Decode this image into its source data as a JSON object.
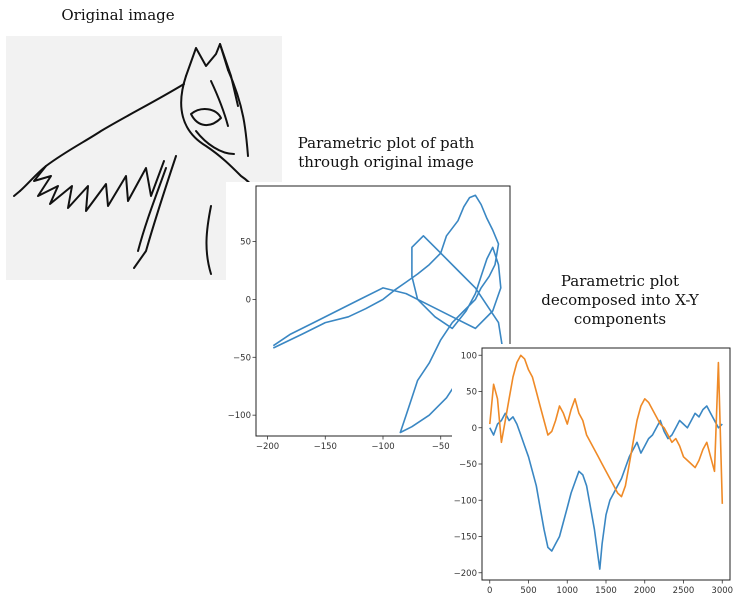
{
  "captions": {
    "original": "Original image",
    "parametric": "Parametric plot of path\nthrough original image",
    "decomposed": "Parametric plot\ndecomposed into X-Y\ncomponents"
  },
  "chart_data": [
    {
      "type": "line",
      "title": "",
      "xlabel": "",
      "ylabel": "",
      "xlim": [
        -210,
        10
      ],
      "ylim": [
        -118,
        98
      ],
      "xticks": [
        -200,
        -150,
        -100,
        -50,
        0
      ],
      "yticks": [
        50,
        0,
        -50,
        -100
      ],
      "x_tick_labels": [
        "−200",
        "−150",
        "−100",
        "−50",
        "0"
      ],
      "y_tick_labels": [
        "50",
        "0",
        "−50",
        "−100"
      ],
      "series": [
        {
          "color": "#3a87c3",
          "x": [
            -195,
            -170,
            -150,
            -130,
            -115,
            -100,
            -90,
            -80,
            -70,
            -60,
            -50,
            -45,
            -35,
            -30,
            -25,
            -20,
            -15,
            -10,
            -5,
            0,
            -3,
            -8,
            -15,
            -20,
            -30,
            -40,
            -50,
            -60,
            -70,
            -75,
            -80,
            -85,
            -75,
            -60,
            -45,
            -35,
            -25,
            -15,
            -5,
            2,
            4,
            0,
            -10,
            -20,
            -35,
            -50,
            -65,
            -75,
            -75,
            -70,
            -55,
            -40,
            -28,
            -20,
            -15,
            -10,
            -5,
            0,
            2,
            -5,
            -20,
            -40,
            -60,
            -80,
            -100,
            -120,
            -140,
            -160,
            -180,
            -195
          ],
          "y": [
            -42,
            -30,
            -20,
            -15,
            -8,
            0,
            8,
            15,
            22,
            30,
            40,
            55,
            68,
            80,
            88,
            90,
            82,
            70,
            60,
            48,
            30,
            20,
            10,
            0,
            -10,
            -20,
            -35,
            -55,
            -70,
            -85,
            -100,
            -115,
            -110,
            -100,
            -85,
            -70,
            -60,
            -50,
            -55,
            -65,
            -45,
            -20,
            -5,
            10,
            25,
            40,
            55,
            45,
            20,
            0,
            -15,
            -25,
            -10,
            5,
            20,
            35,
            45,
            30,
            10,
            -10,
            -25,
            -15,
            -5,
            5,
            10,
            0,
            -10,
            -20,
            -30,
            -40
          ]
        }
      ]
    },
    {
      "type": "line",
      "title": "",
      "xlabel": "",
      "ylabel": "",
      "xlim": [
        -100,
        3100
      ],
      "ylim": [
        -210,
        110
      ],
      "xticks": [
        0,
        500,
        1000,
        1500,
        2000,
        2500,
        3000
      ],
      "yticks": [
        100,
        50,
        0,
        -50,
        -100,
        -150,
        -200
      ],
      "x_tick_labels": [
        "0",
        "500",
        "1000",
        "1500",
        "2000",
        "2500",
        "3000"
      ],
      "y_tick_labels": [
        "100",
        "50",
        "0",
        "−50",
        "−100",
        "−150",
        "−200"
      ],
      "series": [
        {
          "color": "#3a87c3",
          "x": [
            0,
            50,
            100,
            150,
            200,
            250,
            300,
            350,
            400,
            450,
            500,
            550,
            600,
            650,
            700,
            750,
            800,
            850,
            900,
            950,
            1000,
            1050,
            1100,
            1150,
            1200,
            1250,
            1300,
            1350,
            1400,
            1420,
            1450,
            1500,
            1550,
            1600,
            1650,
            1700,
            1750,
            1800,
            1850,
            1900,
            1950,
            2000,
            2050,
            2100,
            2150,
            2200,
            2250,
            2300,
            2350,
            2400,
            2450,
            2500,
            2550,
            2600,
            2650,
            2700,
            2750,
            2800,
            2850,
            2900,
            2950,
            3000
          ],
          "y": [
            0,
            -10,
            5,
            10,
            20,
            10,
            15,
            5,
            -10,
            -25,
            -40,
            -60,
            -80,
            -110,
            -140,
            -165,
            -170,
            -160,
            -150,
            -130,
            -110,
            -90,
            -75,
            -60,
            -65,
            -80,
            -110,
            -140,
            -180,
            -195,
            -160,
            -120,
            -100,
            -90,
            -80,
            -70,
            -55,
            -40,
            -30,
            -20,
            -35,
            -25,
            -15,
            -10,
            0,
            10,
            -5,
            -15,
            -10,
            0,
            10,
            5,
            0,
            10,
            20,
            15,
            25,
            30,
            20,
            10,
            0,
            5
          ]
        },
        {
          "color": "#ef8a27",
          "x": [
            0,
            50,
            100,
            150,
            200,
            250,
            300,
            350,
            400,
            450,
            500,
            550,
            600,
            650,
            700,
            750,
            800,
            850,
            900,
            950,
            1000,
            1050,
            1100,
            1150,
            1200,
            1250,
            1300,
            1350,
            1400,
            1450,
            1500,
            1550,
            1600,
            1650,
            1700,
            1750,
            1800,
            1850,
            1900,
            1950,
            2000,
            2050,
            2100,
            2150,
            2200,
            2250,
            2300,
            2350,
            2400,
            2450,
            2500,
            2550,
            2600,
            2650,
            2700,
            2750,
            2800,
            2850,
            2900,
            2950,
            3000
          ],
          "y": [
            5,
            60,
            40,
            -20,
            10,
            40,
            70,
            90,
            100,
            95,
            80,
            70,
            50,
            30,
            10,
            -10,
            -5,
            10,
            30,
            20,
            5,
            25,
            40,
            20,
            10,
            -10,
            -20,
            -30,
            -40,
            -50,
            -60,
            -70,
            -80,
            -90,
            -95,
            -80,
            -50,
            -20,
            10,
            30,
            40,
            35,
            25,
            15,
            5,
            0,
            -10,
            -20,
            -15,
            -25,
            -40,
            -45,
            -50,
            -55,
            -45,
            -30,
            -20,
            -40,
            -60,
            90,
            -105
          ]
        }
      ]
    }
  ]
}
